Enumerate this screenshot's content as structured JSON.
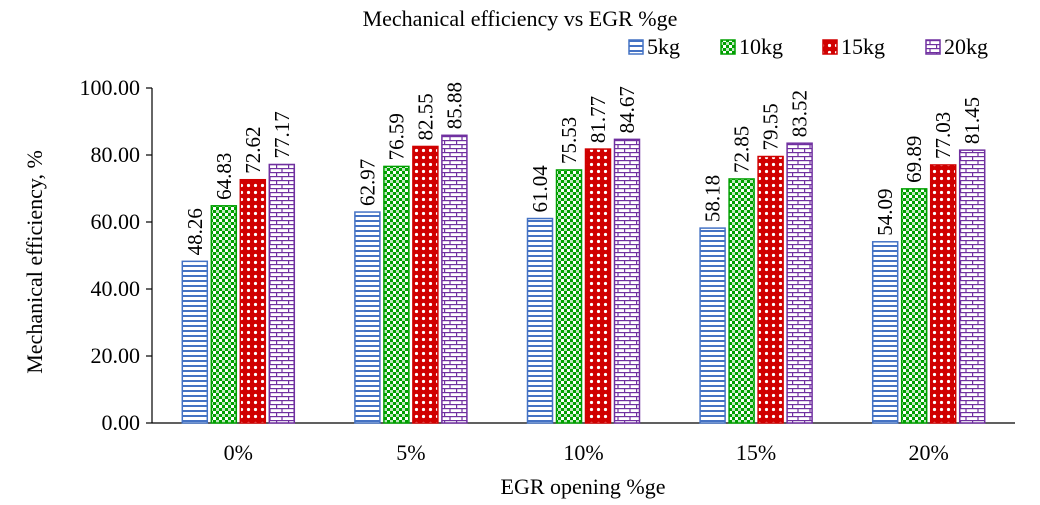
{
  "chart_data": {
    "type": "bar",
    "title": "Mechanical efficiency vs EGR %ge",
    "xlabel": "EGR opening %ge",
    "ylabel": "Mechanical efficiency, %",
    "ylim": [
      0,
      100
    ],
    "yticks": [
      "0.00",
      "20.00",
      "40.00",
      "60.00",
      "80.00",
      "100.00"
    ],
    "categories": [
      "0%",
      "5%",
      "10%",
      "15%",
      "20%"
    ],
    "legend_position": "top-right",
    "grid": false,
    "series": [
      {
        "name": "5kg",
        "color": "#4472c4",
        "pattern": "horizontal-lines",
        "values": [
          48.26,
          62.97,
          61.04,
          58.18,
          54.09
        ],
        "labels": [
          "48.26",
          "62.97",
          "61.04",
          "58.18",
          "54.09"
        ]
      },
      {
        "name": "10kg",
        "color": "#00a000",
        "pattern": "checker",
        "values": [
          64.83,
          76.59,
          75.53,
          72.85,
          69.89
        ],
        "labels": [
          "64.83",
          "76.59",
          "75.53",
          "72.85",
          "69.89"
        ]
      },
      {
        "name": "15kg",
        "color": "#d00000",
        "pattern": "dots",
        "values": [
          72.62,
          82.55,
          81.77,
          79.55,
          77.03
        ],
        "labels": [
          "72.62",
          "82.55",
          "81.77",
          "79.55",
          "77.03"
        ]
      },
      {
        "name": "20kg",
        "color": "#7030a0",
        "pattern": "brick",
        "values": [
          77.17,
          85.88,
          84.67,
          83.52,
          81.45
        ],
        "labels": [
          "77.17",
          "85.88",
          "84.67",
          "83.52",
          "81.45"
        ]
      }
    ]
  }
}
